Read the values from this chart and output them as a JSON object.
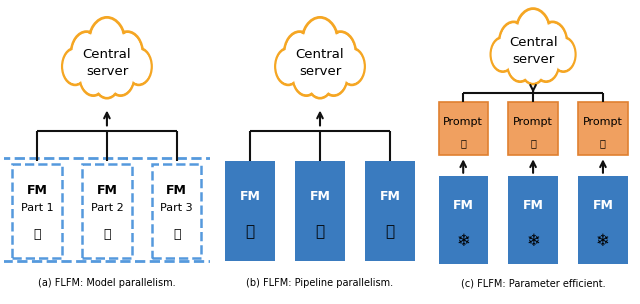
{
  "fig_width": 6.4,
  "fig_height": 3.04,
  "bg_color": "#ffffff",
  "cloud_color": "#f5a623",
  "fm_blue": "#3a7bbf",
  "prompt_orange": "#f0a060",
  "prompt_border": "#e08030",
  "dashed_border": "#5599dd",
  "arrow_color": "#111111",
  "line_color": "#111111",
  "caption_a": "(a) FLFM: Model parallelism.",
  "caption_b": "(b) FLFM: Pipeline parallelism.",
  "caption_c": "(c) FLFM: Parameter efficient.",
  "caption_fontsize": 7.0,
  "cloud_text": "Central\nserver",
  "cloud_fontsize": 9.5
}
